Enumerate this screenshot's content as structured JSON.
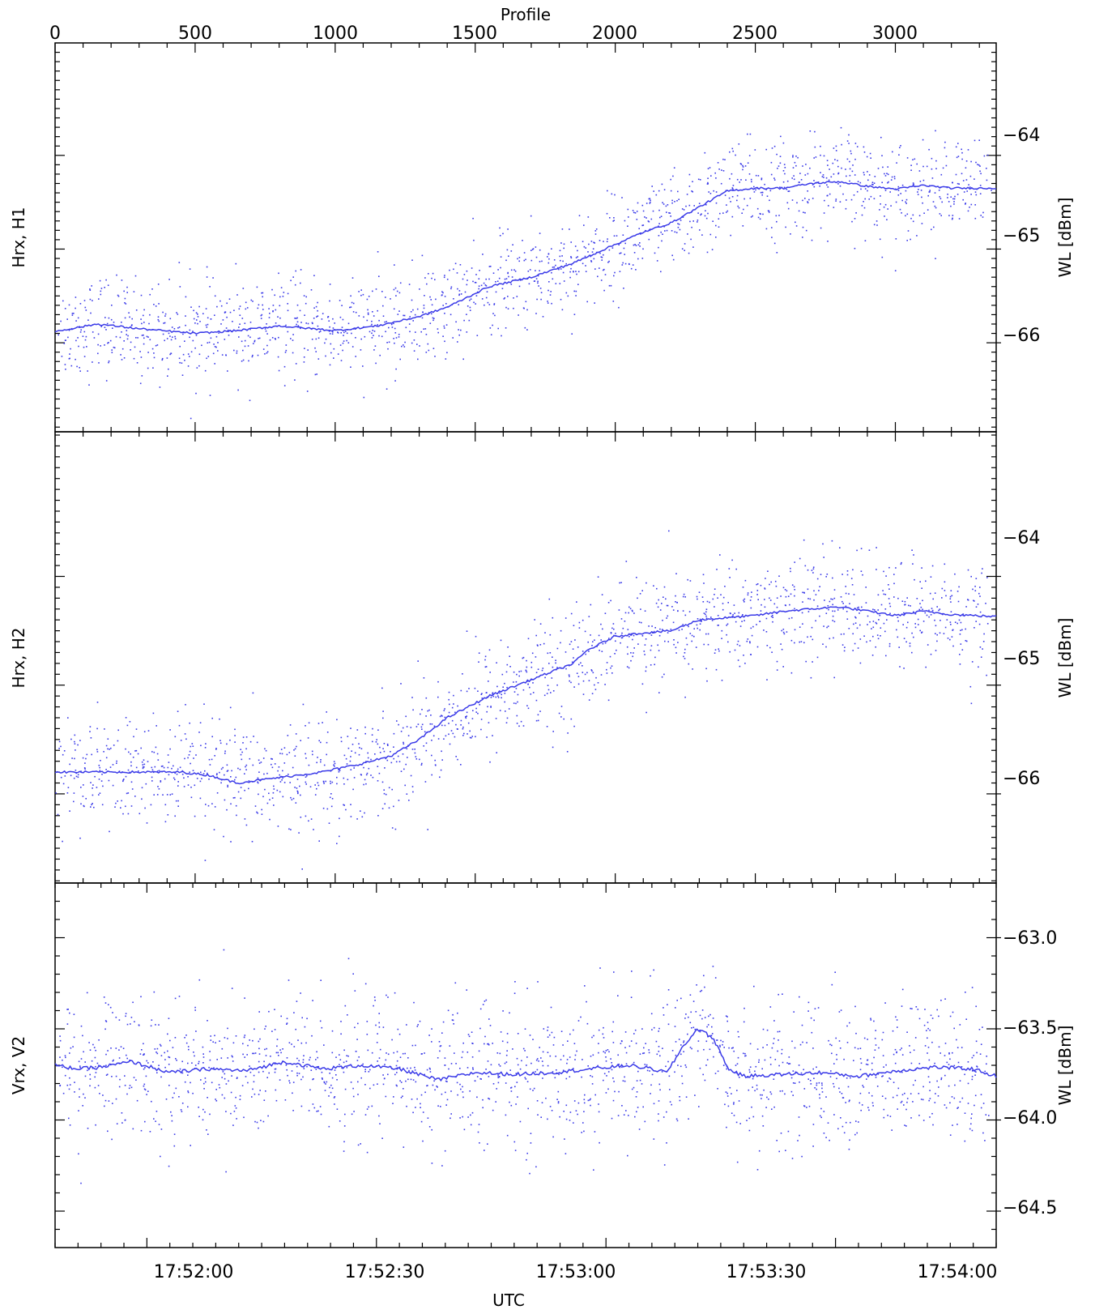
{
  "chart_data": [
    {
      "type": "scatter",
      "panel": "top",
      "ylabel_left": "Hrx,  H1",
      "ylabel_right": "WL  [dBm]",
      "top_axis": {
        "label": "Profile",
        "range": [
          0,
          3360
        ],
        "ticks": [
          0,
          500,
          1000,
          1500,
          2000,
          2500,
          3000
        ]
      },
      "ylim": [
        -66.95,
        -62.8
      ],
      "yticks": [
        -64,
        -65,
        -66
      ],
      "ytick_labels": [
        "−64",
        "−65",
        "−66"
      ],
      "grid": false,
      "series": [
        {
          "kind": "scatter",
          "noise_sd": 0.26,
          "count": 1600
        },
        {
          "kind": "line",
          "x": [
            0,
            150,
            300,
            500,
            650,
            800,
            1000,
            1150,
            1300,
            1400,
            1550,
            1700,
            1850,
            2000,
            2100,
            2200,
            2300,
            2400,
            2500,
            2600,
            2700,
            2800,
            2900,
            3000,
            3100,
            3200,
            3360
          ],
          "y": [
            -65.88,
            -65.8,
            -65.85,
            -65.9,
            -65.87,
            -65.82,
            -65.87,
            -65.82,
            -65.72,
            -65.62,
            -65.4,
            -65.3,
            -65.15,
            -64.95,
            -64.82,
            -64.72,
            -64.55,
            -64.38,
            -64.35,
            -64.35,
            -64.3,
            -64.28,
            -64.33,
            -64.36,
            -64.32,
            -64.35,
            -64.35
          ]
        }
      ]
    },
    {
      "type": "scatter",
      "panel": "middle",
      "ylabel_left": "Hrx,  H2",
      "ylabel_right": "WL  [dBm]",
      "ylim": [
        -66.82,
        -62.67
      ],
      "yticks": [
        -64,
        -65,
        -66
      ],
      "ytick_labels": [
        "−64",
        "−65",
        "−66"
      ],
      "grid": false,
      "series": [
        {
          "kind": "scatter",
          "noise_sd": 0.26,
          "count": 1600
        },
        {
          "kind": "line",
          "x": [
            0,
            200,
            450,
            550,
            650,
            800,
            950,
            1100,
            1200,
            1300,
            1400,
            1550,
            1700,
            1850,
            1900,
            2000,
            2100,
            2200,
            2300,
            2400,
            2500,
            2600,
            2700,
            2800,
            2900,
            3000,
            3100,
            3200,
            3360
          ],
          "y": [
            -65.8,
            -65.8,
            -65.8,
            -65.83,
            -65.9,
            -65.85,
            -65.8,
            -65.72,
            -65.65,
            -65.5,
            -65.3,
            -65.1,
            -64.95,
            -64.8,
            -64.68,
            -64.55,
            -64.52,
            -64.5,
            -64.4,
            -64.38,
            -64.36,
            -64.32,
            -64.3,
            -64.28,
            -64.32,
            -64.36,
            -64.32,
            -64.35,
            -64.37
          ]
        }
      ]
    },
    {
      "type": "scatter",
      "panel": "bottom",
      "ylabel_left": "Vrx,  V2",
      "ylabel_right": "WL  [dBm]",
      "xlabel": "UTC",
      "xlim_seconds": [
        0,
        123
      ],
      "xticks": [
        12,
        42,
        72,
        102,
        132
      ],
      "xtick_labels": [
        "17:52:00",
        "17:52:30",
        "17:53:00",
        "17:53:30",
        "17:54:00"
      ],
      "ylim": [
        -64.7,
        -62.7
      ],
      "yticks": [
        -63.0,
        -63.5,
        -64.0,
        -64.5
      ],
      "ytick_labels": [
        "−63.0",
        "−63.5",
        "−64.0",
        "−64.5"
      ],
      "grid": false,
      "series": [
        {
          "kind": "scatter",
          "noise_sd": 0.2,
          "count": 1600
        },
        {
          "kind": "line",
          "x": [
            0,
            3,
            6,
            10,
            15,
            20,
            25,
            30,
            35,
            40,
            45,
            50,
            55,
            60,
            65,
            70,
            75,
            78,
            80,
            82,
            84,
            86,
            88,
            90,
            95,
            100,
            105,
            110,
            115,
            120,
            123
          ],
          "y": [
            -63.7,
            -63.72,
            -63.71,
            -63.68,
            -63.74,
            -63.72,
            -63.73,
            -63.68,
            -63.72,
            -63.7,
            -63.72,
            -63.78,
            -63.74,
            -63.75,
            -63.74,
            -63.72,
            -63.7,
            -63.72,
            -63.74,
            -63.6,
            -63.5,
            -63.55,
            -63.72,
            -63.76,
            -63.75,
            -63.74,
            -63.76,
            -63.73,
            -63.71,
            -63.72,
            -63.76
          ]
        }
      ]
    }
  ],
  "colors": {
    "series": "#3a3ae8",
    "axis": "#000000"
  },
  "ui": {
    "top_axis_title": "Profile",
    "bottom_axis_title": "UTC",
    "top_ticks": [
      "0",
      "500",
      "1000",
      "1500",
      "2000",
      "2500",
      "3000"
    ],
    "bottom_ticks": [
      "17:52:00",
      "17:52:30",
      "17:53:00",
      "17:53:30",
      "17:54:00"
    ],
    "p1": {
      "left": "Hrx,  H1",
      "right": "WL  [dBm]",
      "t0": "−64",
      "t1": "−65",
      "t2": "−66"
    },
    "p2": {
      "left": "Hrx,  H2",
      "right": "WL  [dBm]",
      "t0": "−64",
      "t1": "−65",
      "t2": "−66"
    },
    "p3": {
      "left": "Vrx,  V2",
      "right": "WL  [dBm]",
      "t0": "−63.0",
      "t1": "−63.5",
      "t2": "−64.0",
      "t3": "−64.5"
    }
  }
}
